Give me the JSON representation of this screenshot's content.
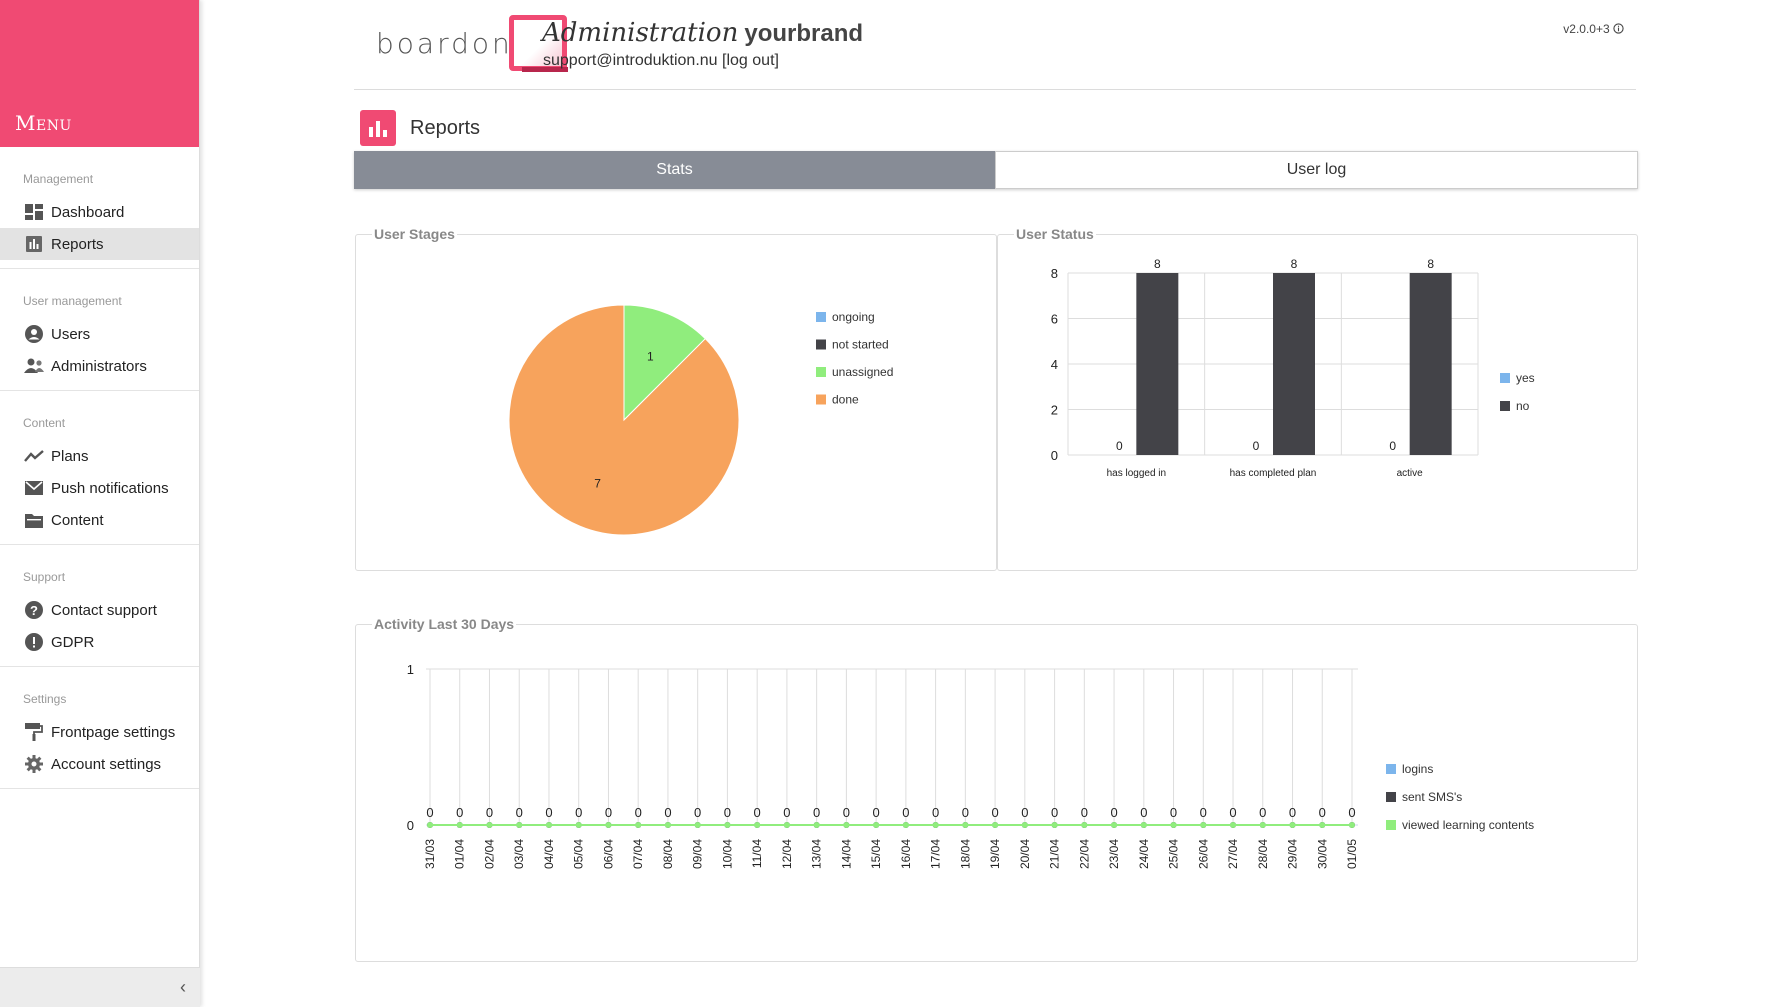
{
  "sidebar": {
    "menu_label": "Menu",
    "sections": [
      {
        "title": "Management",
        "items": [
          {
            "label": "Dashboard",
            "icon": "dashboard-icon",
            "active": false
          },
          {
            "label": "Reports",
            "icon": "bar-chart-icon",
            "active": true
          }
        ]
      },
      {
        "title": "User management",
        "items": [
          {
            "label": "Users",
            "icon": "user-icon",
            "active": false
          },
          {
            "label": "Administrators",
            "icon": "users-icon",
            "active": false
          }
        ]
      },
      {
        "title": "Content",
        "items": [
          {
            "label": "Plans",
            "icon": "trend-icon",
            "active": false
          },
          {
            "label": "Push notifications",
            "icon": "envelope-icon",
            "active": false
          },
          {
            "label": "Content",
            "icon": "folder-icon",
            "active": false
          }
        ]
      },
      {
        "title": "Support",
        "items": [
          {
            "label": "Contact support",
            "icon": "question-icon",
            "active": false
          },
          {
            "label": "GDPR",
            "icon": "exclamation-icon",
            "active": false
          }
        ]
      },
      {
        "title": "Settings",
        "items": [
          {
            "label": "Frontpage settings",
            "icon": "paint-roller-icon",
            "active": false
          },
          {
            "label": "Account settings",
            "icon": "gear-icon",
            "active": false
          }
        ]
      }
    ],
    "collapse_label": "‹"
  },
  "header": {
    "logo_text": "boardon",
    "admin_title": "Administration",
    "brand": "yourbrand",
    "email": "support@introduktion.nu",
    "logout": "[log out]",
    "version": "v2.0.0+3"
  },
  "page": {
    "title": "Reports",
    "tabs": [
      {
        "label": "Stats",
        "active": true
      },
      {
        "label": "User log",
        "active": false
      }
    ]
  },
  "panels": {
    "user_stages": "User Stages",
    "user_status": "User Status",
    "activity": "Activity Last 30 Days"
  },
  "colors": {
    "brand": "#f04a73",
    "ongoing": "#7cb5ec",
    "not_started": "#434348",
    "unassigned": "#90ed7d",
    "done": "#f7a35c"
  },
  "chart_data": [
    {
      "type": "pie",
      "title": "User Stages",
      "categories": [
        "ongoing",
        "not started",
        "unassigned",
        "done"
      ],
      "values": [
        0,
        0,
        1,
        7
      ],
      "colors": [
        "#7cb5ec",
        "#434348",
        "#90ed7d",
        "#f7a35c"
      ],
      "legend": "right"
    },
    {
      "type": "bar",
      "title": "User Status",
      "categories": [
        "has logged in",
        "has completed plan",
        "active"
      ],
      "series": [
        {
          "name": "yes",
          "values": [
            0,
            0,
            0
          ],
          "color": "#7cb5ec"
        },
        {
          "name": "no",
          "values": [
            8,
            8,
            8
          ],
          "color": "#434348"
        }
      ],
      "ylim": [
        0,
        8
      ],
      "yticks": [
        0,
        2,
        4,
        6,
        8
      ],
      "grid": true,
      "legend": "right"
    },
    {
      "type": "line",
      "title": "Activity Last 30 Days",
      "x": [
        "31/03",
        "01/04",
        "02/04",
        "03/04",
        "04/04",
        "05/04",
        "06/04",
        "07/04",
        "08/04",
        "09/04",
        "10/04",
        "11/04",
        "12/04",
        "13/04",
        "14/04",
        "15/04",
        "16/04",
        "17/04",
        "18/04",
        "19/04",
        "20/04",
        "21/04",
        "22/04",
        "23/04",
        "24/04",
        "25/04",
        "26/04",
        "27/04",
        "28/04",
        "29/04",
        "30/04",
        "01/05"
      ],
      "series": [
        {
          "name": "logins",
          "values": [
            0,
            0,
            0,
            0,
            0,
            0,
            0,
            0,
            0,
            0,
            0,
            0,
            0,
            0,
            0,
            0,
            0,
            0,
            0,
            0,
            0,
            0,
            0,
            0,
            0,
            0,
            0,
            0,
            0,
            0,
            0,
            0
          ],
          "color": "#7cb5ec"
        },
        {
          "name": "sent SMS's",
          "values": [
            0,
            0,
            0,
            0,
            0,
            0,
            0,
            0,
            0,
            0,
            0,
            0,
            0,
            0,
            0,
            0,
            0,
            0,
            0,
            0,
            0,
            0,
            0,
            0,
            0,
            0,
            0,
            0,
            0,
            0,
            0,
            0
          ],
          "color": "#434348"
        },
        {
          "name": "viewed learning contents",
          "values": [
            0,
            0,
            0,
            0,
            0,
            0,
            0,
            0,
            0,
            0,
            0,
            0,
            0,
            0,
            0,
            0,
            0,
            0,
            0,
            0,
            0,
            0,
            0,
            0,
            0,
            0,
            0,
            0,
            0,
            0,
            0,
            0
          ],
          "color": "#90ed7d"
        }
      ],
      "ylim": [
        0,
        1
      ],
      "yticks": [
        0,
        1
      ],
      "grid": true,
      "legend": "right"
    }
  ]
}
